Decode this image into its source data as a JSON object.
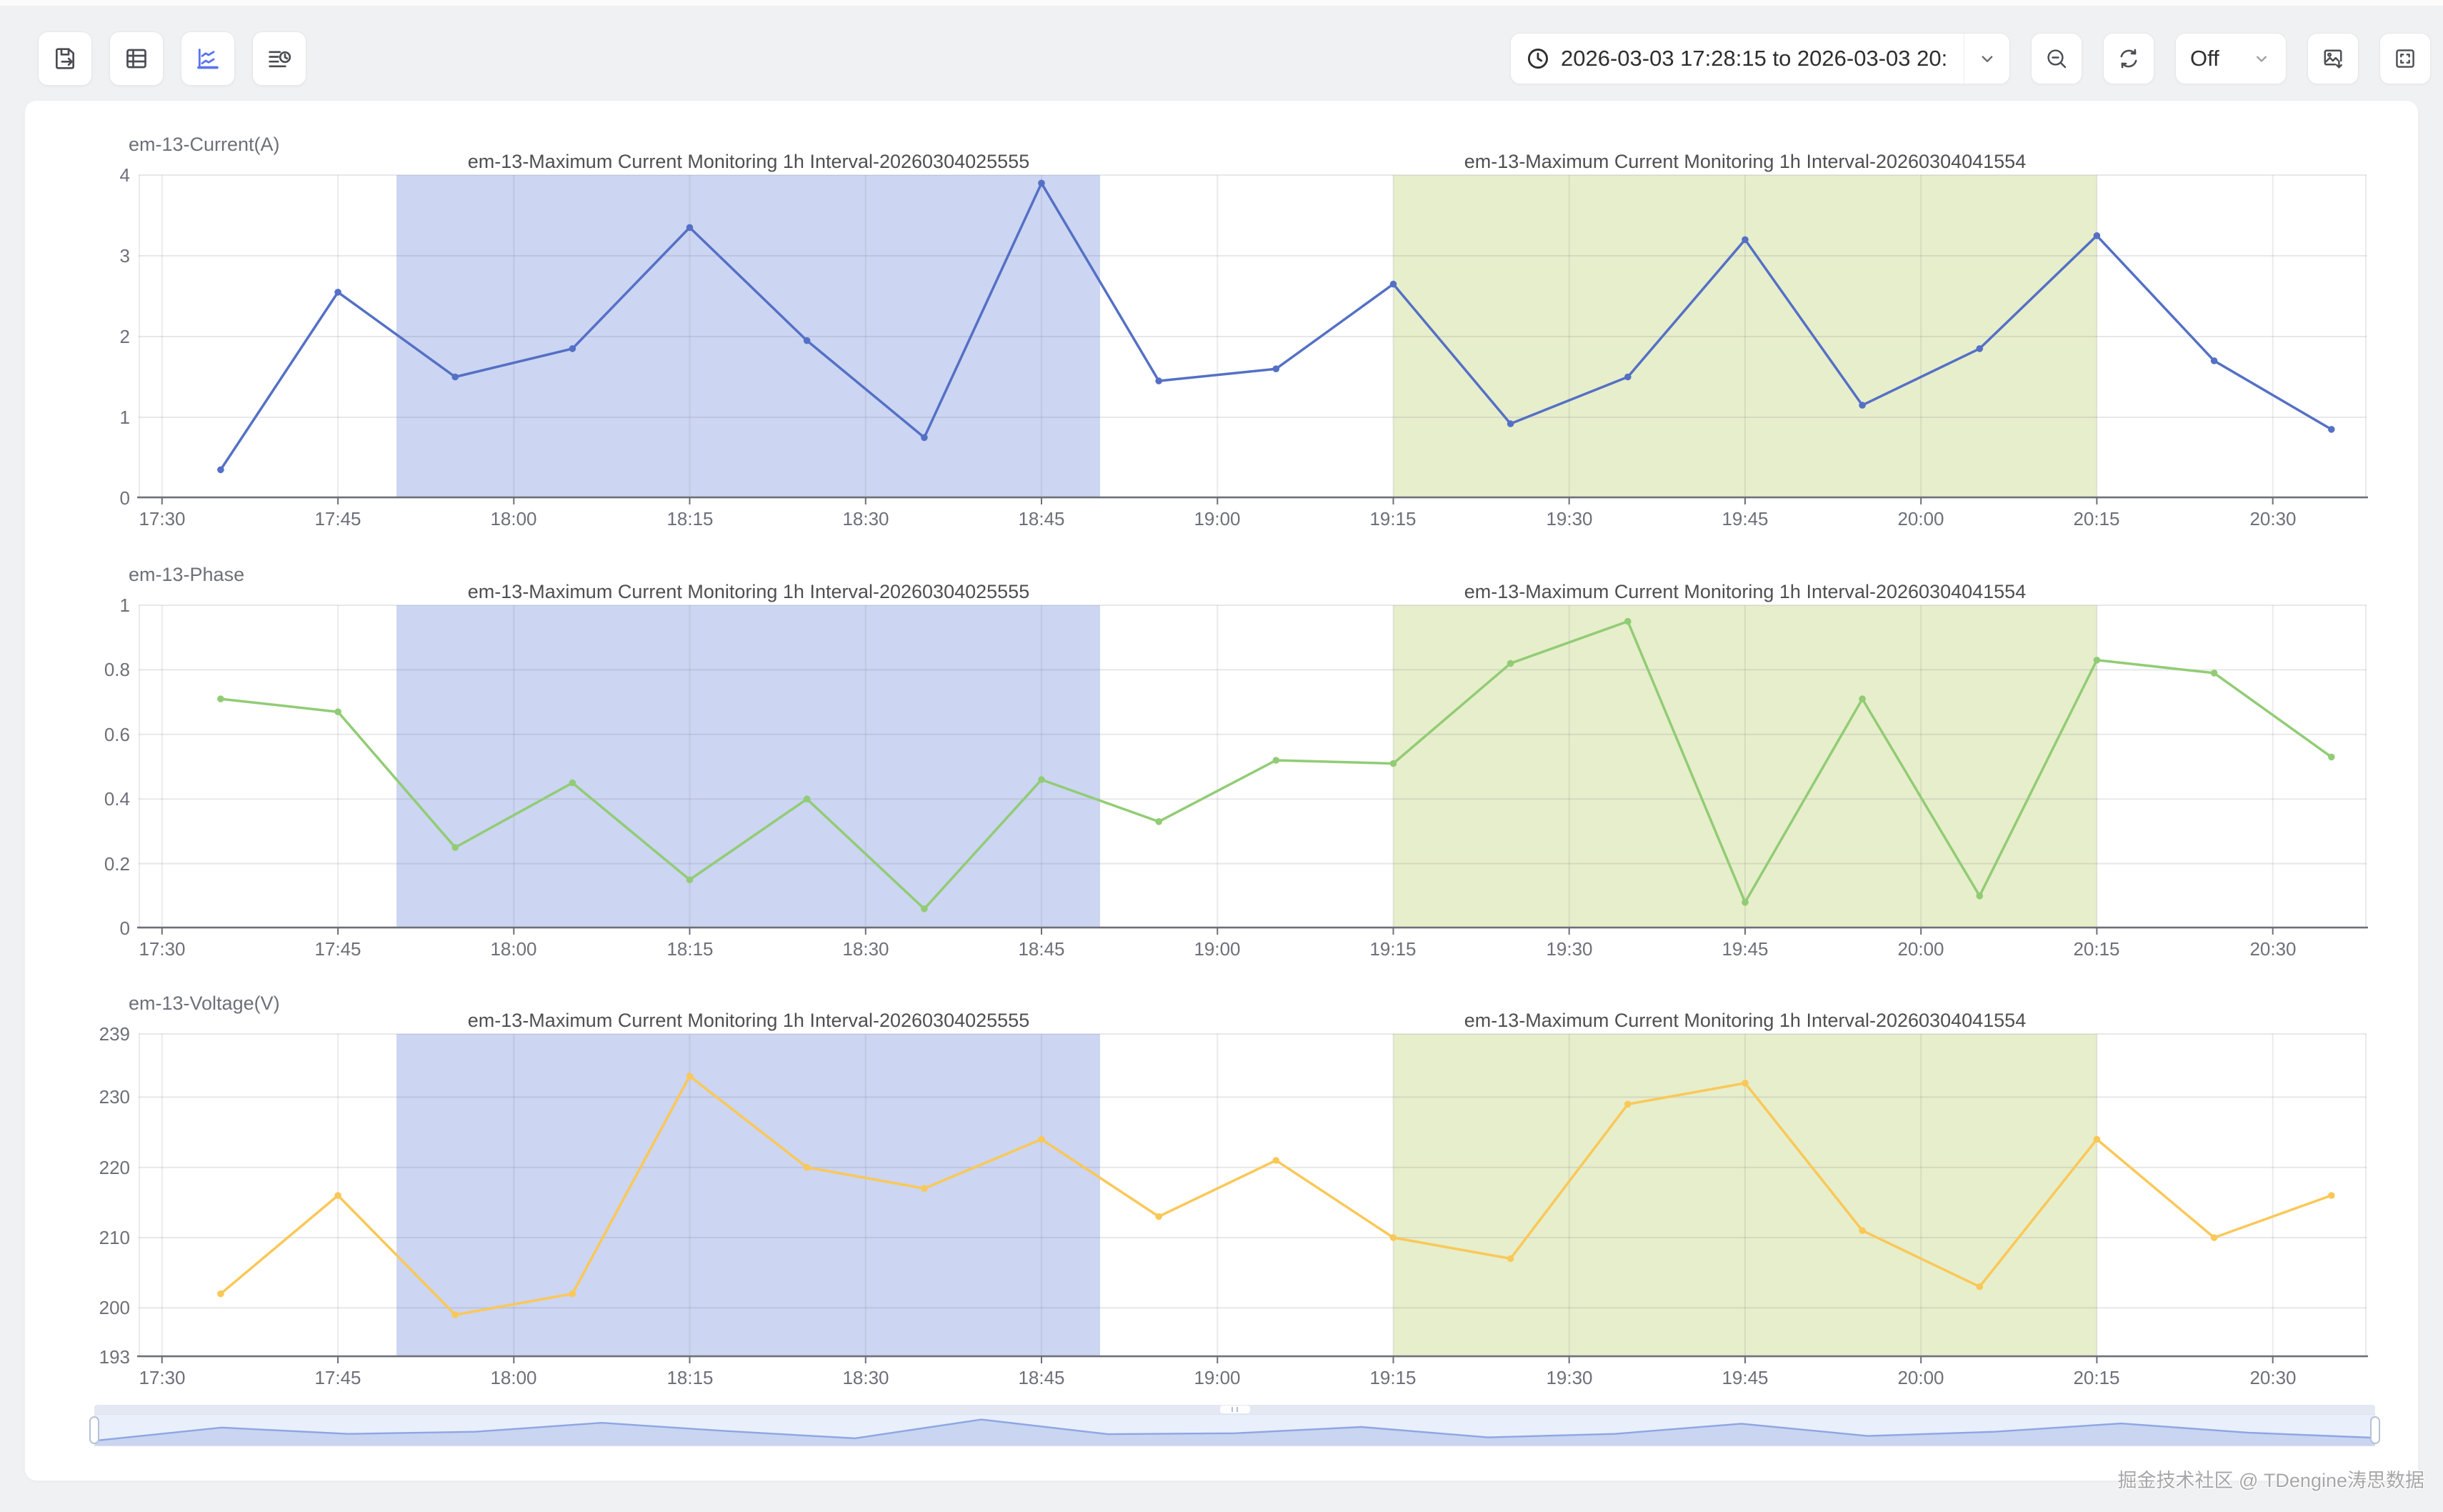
{
  "toolbar": {
    "buttons_left": [
      {
        "name": "export-data",
        "icon": "save-export-icon"
      },
      {
        "name": "table-view",
        "icon": "table-icon"
      },
      {
        "name": "chart-view",
        "icon": "line-chart-icon"
      },
      {
        "name": "query-history",
        "icon": "list-clock-icon"
      }
    ],
    "time_range_value": "2026-03-03 17:28:15 to 2026-03-03 20:",
    "auto_refresh_label": "Off"
  },
  "x_axis": {
    "domain_start": "17:28",
    "domain_end": "20:38",
    "ticks": [
      "17:30",
      "17:45",
      "18:00",
      "18:15",
      "18:30",
      "18:45",
      "19:00",
      "19:15",
      "19:30",
      "19:45",
      "20:00",
      "20:15",
      "20:30"
    ],
    "points": [
      "17:35",
      "17:45",
      "17:55",
      "18:05",
      "18:15",
      "18:25",
      "18:35",
      "18:45",
      "18:55",
      "19:05",
      "19:15",
      "19:25",
      "19:35",
      "19:45",
      "19:55",
      "20:05",
      "20:15",
      "20:25",
      "20:35"
    ]
  },
  "regions": [
    {
      "label": "em-13-Maximum Current Monitoring 1h Interval-20260304025555",
      "start": "17:50",
      "end": "18:50",
      "color": "#ccd5f1"
    },
    {
      "label": "em-13-Maximum Current Monitoring 1h Interval-20260304041554",
      "start": "19:15",
      "end": "20:15",
      "color": "#e7eecb"
    }
  ],
  "chart_data": [
    {
      "type": "line",
      "name": "em-13-Current(A)",
      "color": "#5470c6",
      "ylim": [
        0,
        4
      ],
      "yticks": [
        0,
        1,
        2,
        3,
        4
      ],
      "values": [
        0.35,
        2.55,
        1.5,
        1.85,
        3.35,
        1.95,
        0.75,
        3.9,
        1.45,
        1.6,
        2.65,
        0.92,
        1.5,
        3.2,
        1.15,
        1.85,
        3.25,
        1.7,
        0.85
      ]
    },
    {
      "type": "line",
      "name": "em-13-Phase",
      "color": "#91cc75",
      "ylim": [
        0,
        1
      ],
      "yticks": [
        0,
        0.2,
        0.4,
        0.6,
        0.8,
        1
      ],
      "values": [
        0.71,
        0.67,
        0.25,
        0.45,
        0.15,
        0.4,
        0.06,
        0.46,
        0.33,
        0.52,
        0.51,
        0.82,
        0.95,
        0.08,
        0.71,
        0.1,
        0.83,
        0.79,
        0.53
      ]
    },
    {
      "type": "line",
      "name": "em-13-Voltage(V)",
      "color": "#fac858",
      "ylim": [
        193,
        239
      ],
      "yticks": [
        193,
        200,
        210,
        220,
        230,
        239
      ],
      "values": [
        202,
        216,
        199,
        202,
        233,
        220,
        217,
        224,
        213,
        221,
        210,
        207,
        229,
        232,
        211,
        203,
        224,
        210,
        216
      ]
    }
  ],
  "slider": {
    "source": "em-13-Current(A)"
  },
  "watermark": "掘金技术社区 @ TDengine涛思数据"
}
